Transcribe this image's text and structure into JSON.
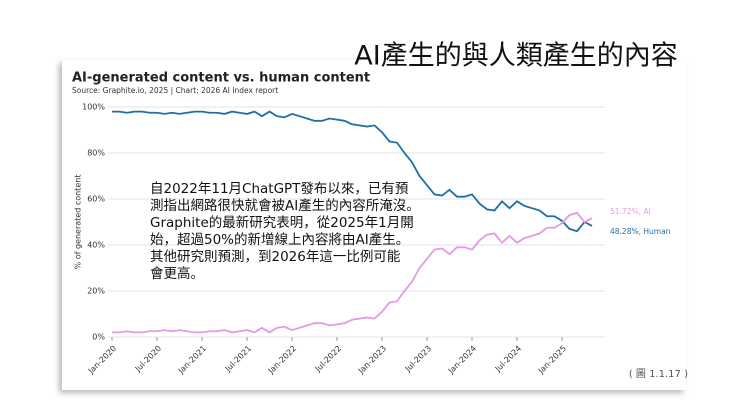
{
  "slide_title": "AI產生的與人類產生的內容",
  "figure_label": "( 圖 1.1.17 )",
  "annotation_lines": [
    "自2022年11月ChatGPT發布以來，已有預",
    "測指出網路很快就會被AI產生的內容所淹沒。",
    "Graphite的最新研究表明，從2025年1月開",
    "始，超過50%的新增線上內容將由AI產生。",
    "其他研究則預測，到2026年這一比例可能",
    "會更高。"
  ],
  "chart_data": {
    "type": "line",
    "title": "AI-generated content vs. human content",
    "subtitle": "Source: Graphite.io, 2025  | Chart: 2026 AI Index report",
    "y_label": "% of generated content",
    "categories": [
      "Jan-2020",
      null,
      null,
      null,
      null,
      null,
      "Jul-2020",
      null,
      null,
      null,
      null,
      null,
      "Jan-2021",
      null,
      null,
      null,
      null,
      null,
      "Jul-2021",
      null,
      null,
      null,
      null,
      null,
      "Jan-2022",
      null,
      null,
      null,
      null,
      null,
      "Jul-2022",
      null,
      null,
      null,
      null,
      null,
      "Jan-2023",
      null,
      null,
      null,
      null,
      null,
      "Jul-2023",
      null,
      null,
      null,
      null,
      null,
      "Jan-2024",
      null,
      null,
      null,
      null,
      null,
      "Jul-2024",
      null,
      null,
      null,
      null,
      null,
      "Jan-2025",
      null,
      null,
      null,
      null
    ],
    "series": [
      {
        "name": "Human",
        "color": "#1f6fa6",
        "end_label": "48.28%, Human",
        "values": [
          98,
          98,
          97.5,
          98,
          98,
          97.5,
          97.5,
          97,
          97.5,
          97,
          97.5,
          98,
          98,
          97.5,
          97.5,
          97,
          98,
          97.5,
          97,
          98,
          96,
          98,
          96,
          95.5,
          97,
          96,
          95,
          94,
          94,
          95,
          94.5,
          94,
          92.5,
          92,
          91.5,
          92,
          89,
          85,
          84.5,
          80,
          76,
          70,
          66,
          62,
          61.5,
          64,
          61,
          61,
          62,
          58,
          55.5,
          55,
          59,
          56,
          59,
          57,
          56,
          55,
          52.5,
          52.5,
          50.5,
          47,
          46,
          50,
          48.28
        ]
      },
      {
        "name": "AI",
        "color": "#e39ae4",
        "end_label": "51.72%, AI",
        "values": [
          2,
          2,
          2.5,
          2,
          2,
          2.5,
          2.5,
          3,
          2.5,
          3,
          2.5,
          2,
          2,
          2.5,
          2.5,
          3,
          2,
          2.5,
          3,
          2,
          4,
          2,
          4,
          4.5,
          3,
          4,
          5,
          6,
          6,
          5,
          5.5,
          6,
          7.5,
          8,
          8.5,
          8,
          11,
          15,
          15.5,
          20,
          24,
          30,
          34,
          38,
          38.5,
          36,
          39,
          39,
          38,
          42,
          44.5,
          45,
          41,
          44,
          41,
          43,
          44,
          45,
          47.5,
          47.5,
          49.5,
          53,
          54,
          50,
          51.72
        ]
      }
    ],
    "ylim": [
      0,
      100
    ],
    "yticks": [
      {
        "value": 0,
        "label": "0%"
      },
      {
        "value": 20,
        "label": "20%"
      },
      {
        "value": 40,
        "label": "40%"
      },
      {
        "value": 60,
        "label": "60%"
      },
      {
        "value": 80,
        "label": "80%"
      },
      {
        "value": 100,
        "label": "100%"
      }
    ],
    "grid": true
  }
}
